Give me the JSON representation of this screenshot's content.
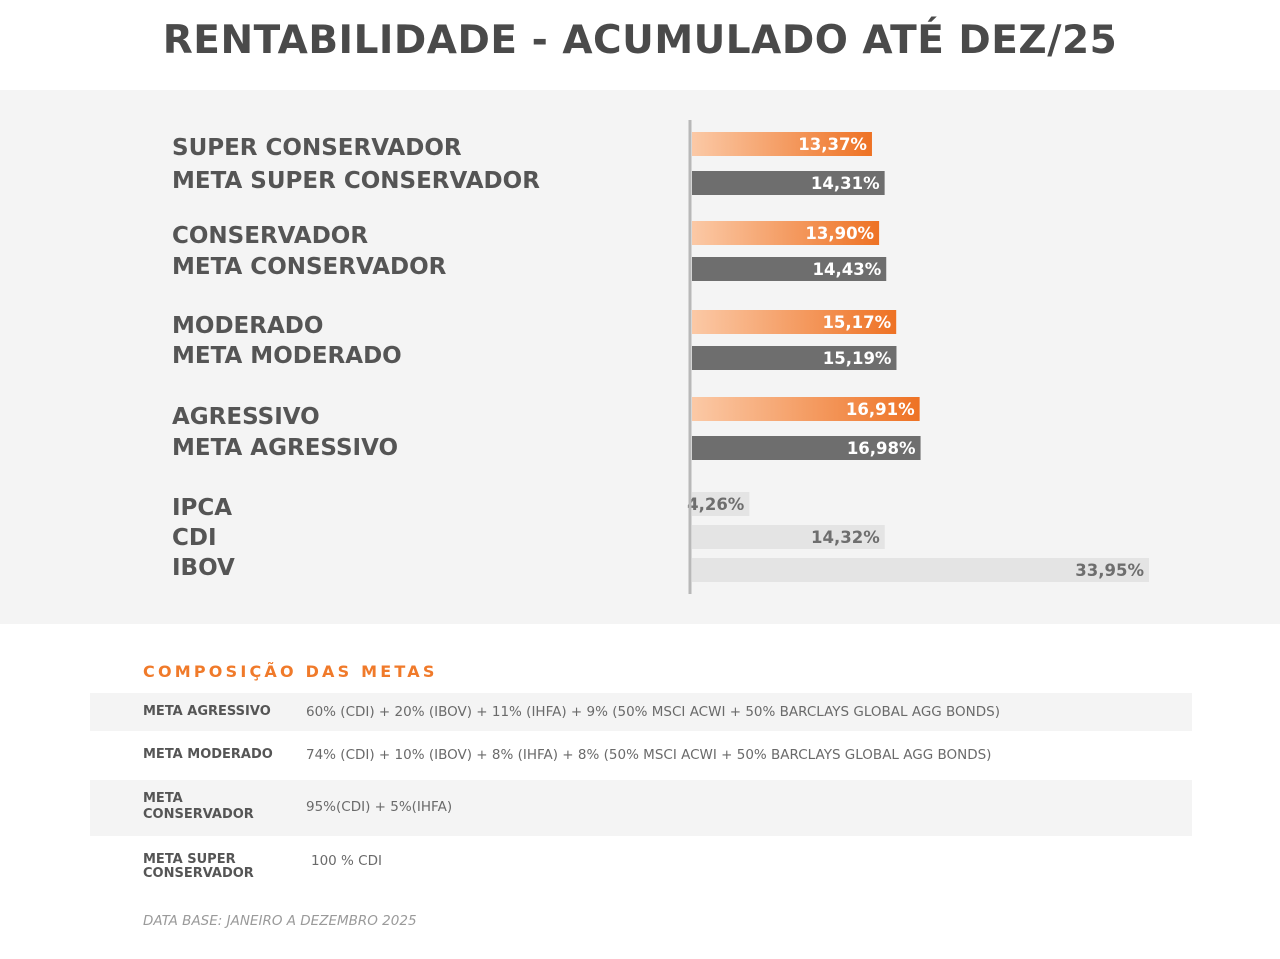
{
  "title": "RENTABILIDADE - ACUMULADO ATÉ DEZ/25",
  "colors": {
    "portfolio_gradient_start": "#fbc9a6",
    "portfolio_gradient_end": "#ee7224",
    "meta_bar": "#6e6e6e",
    "benchmark_bar": "#e4e4e4",
    "axis_line": "#b8b8b8",
    "category_text": "#555555",
    "accent": "#f07a2a"
  },
  "chart_data": {
    "type": "bar",
    "orientation": "horizontal",
    "value_unit": "%",
    "grid": false,
    "categories": [
      "SUPER CONSERVADOR",
      "META SUPER CONSERVADOR",
      "CONSERVADOR",
      "META CONSERVADOR",
      "MODERADO",
      "META MODERADO",
      "AGRESSIVO",
      "META AGRESSIVO",
      "IPCA",
      "CDI",
      "IBOV"
    ],
    "values": [
      13.37,
      14.31,
      13.9,
      14.43,
      15.17,
      15.19,
      16.91,
      16.98,
      4.26,
      14.32,
      33.95
    ],
    "data_labels": [
      "13,37%",
      "14,31%",
      "13,90%",
      "14,43%",
      "15,17%",
      "15,19%",
      "16,91%",
      "16,98%",
      "4,26%",
      "14,32%",
      "33,95%"
    ],
    "styles": [
      "portfolio",
      "meta",
      "portfolio",
      "meta",
      "portfolio",
      "meta",
      "portfolio",
      "meta",
      "benchmark",
      "benchmark",
      "benchmark"
    ],
    "xlim": [
      0,
      33.95
    ]
  },
  "composition": {
    "section_title": "COMPOSIÇÃO DAS METAS",
    "rows": [
      {
        "label": "META AGRESSIVO",
        "value": "60% (CDI) + 20% (IBOV) + 11% (IHFA) + 9% (50% MSCI ACWI + 50% BARCLAYS GLOBAL AGG BONDS)"
      },
      {
        "label": "META MODERADO",
        "value": "74% (CDI) + 10% (IBOV) + 8% (IHFA) + 8% (50% MSCI ACWI + 50% BARCLAYS GLOBAL AGG BONDS)"
      },
      {
        "label": "META CONSERVADOR",
        "value": "95%(CDI) + 5%(IHFA)"
      },
      {
        "label": "META SUPER CONSERVADOR",
        "value": "100 % CDI"
      }
    ]
  },
  "footnote": "DATA BASE: JANEIRO A DEZEMBRO 2025"
}
